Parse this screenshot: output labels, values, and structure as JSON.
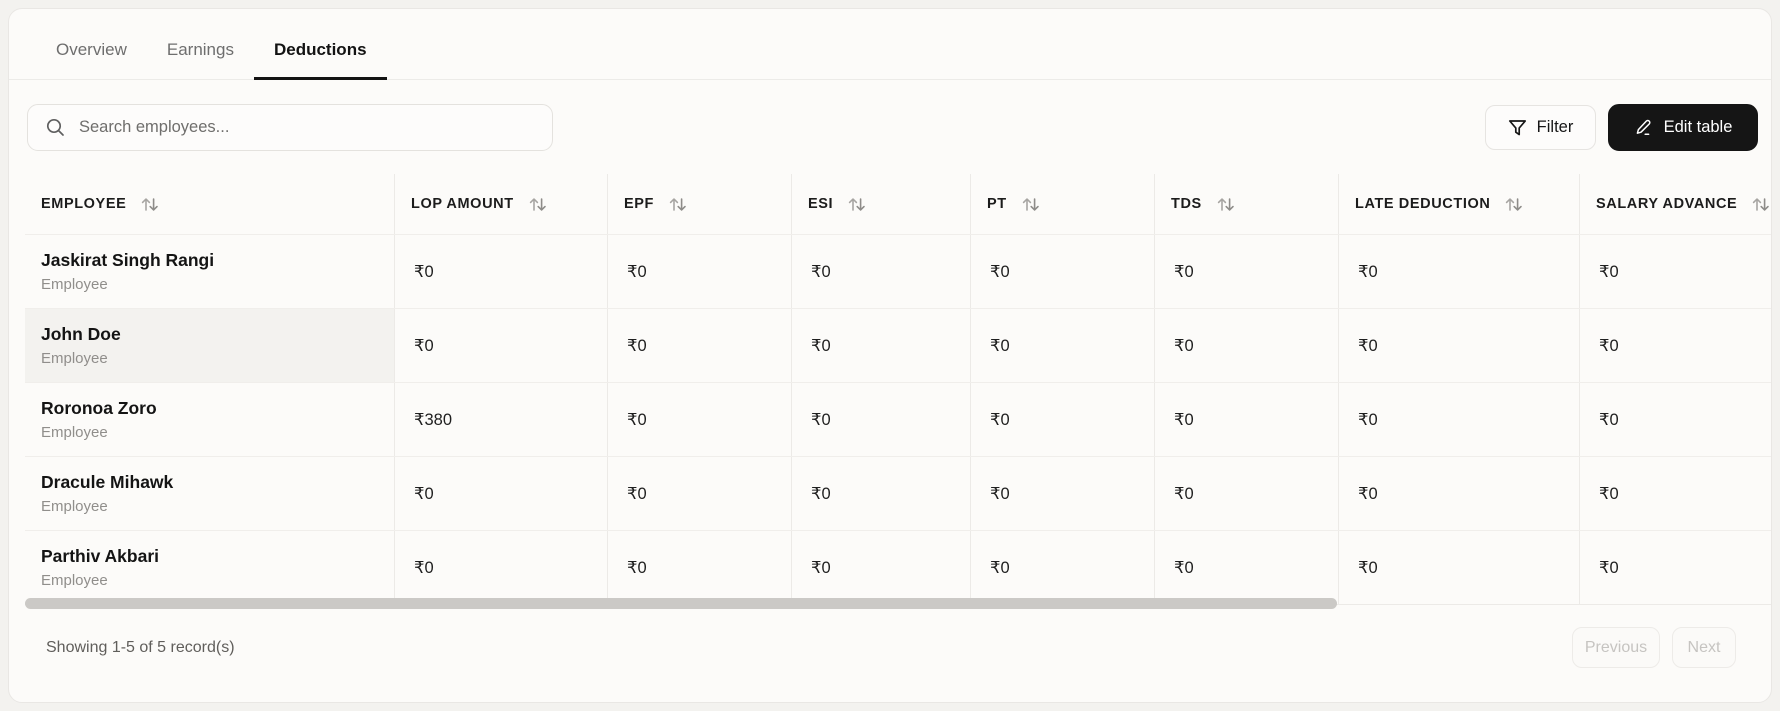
{
  "tabs": [
    {
      "label": "Overview",
      "active": false
    },
    {
      "label": "Earnings",
      "active": false
    },
    {
      "label": "Deductions",
      "active": true
    }
  ],
  "toolbar": {
    "search_placeholder": "Search employees...",
    "filter_label": "Filter",
    "edit_table_label": "Edit table"
  },
  "table": {
    "columns": [
      {
        "label": "EMPLOYEE",
        "sortable": true
      },
      {
        "label": "LOP AMOUNT",
        "sortable": true
      },
      {
        "label": "EPF",
        "sortable": true
      },
      {
        "label": "ESI",
        "sortable": true
      },
      {
        "label": "PT",
        "sortable": true
      },
      {
        "label": "TDS",
        "sortable": true
      },
      {
        "label": "LATE DEDUCTION",
        "sortable": true
      },
      {
        "label": "SALARY ADVANCE",
        "sortable": true
      }
    ],
    "rows": [
      {
        "name": "Jaskirat Singh Rangi",
        "role": "Employee",
        "amounts": [
          "₹0",
          "₹0",
          "₹0",
          "₹0",
          "₹0",
          "₹0",
          "₹0"
        ],
        "highlighted": false
      },
      {
        "name": "John Doe",
        "role": "Employee",
        "amounts": [
          "₹0",
          "₹0",
          "₹0",
          "₹0",
          "₹0",
          "₹0",
          "₹0"
        ],
        "highlighted": true
      },
      {
        "name": "Roronoa Zoro",
        "role": "Employee",
        "amounts": [
          "₹380",
          "₹0",
          "₹0",
          "₹0",
          "₹0",
          "₹0",
          "₹0"
        ],
        "highlighted": false
      },
      {
        "name": "Dracule Mihawk",
        "role": "Employee",
        "amounts": [
          "₹0",
          "₹0",
          "₹0",
          "₹0",
          "₹0",
          "₹0",
          "₹0"
        ],
        "highlighted": false
      },
      {
        "name": "Parthiv Akbari",
        "role": "Employee",
        "amounts": [
          "₹0",
          "₹0",
          "₹0",
          "₹0",
          "₹0",
          "₹0",
          "₹0"
        ],
        "highlighted": false
      }
    ]
  },
  "footer": {
    "summary": "Showing 1-5 of 5 record(s)",
    "previous_label": "Previous",
    "next_label": "Next"
  },
  "colors": {
    "accent_dark": "#151515",
    "card_bg": "#fcfbf9",
    "highlight_cell": "#f3f2ef",
    "muted_text": "#908e8b"
  }
}
